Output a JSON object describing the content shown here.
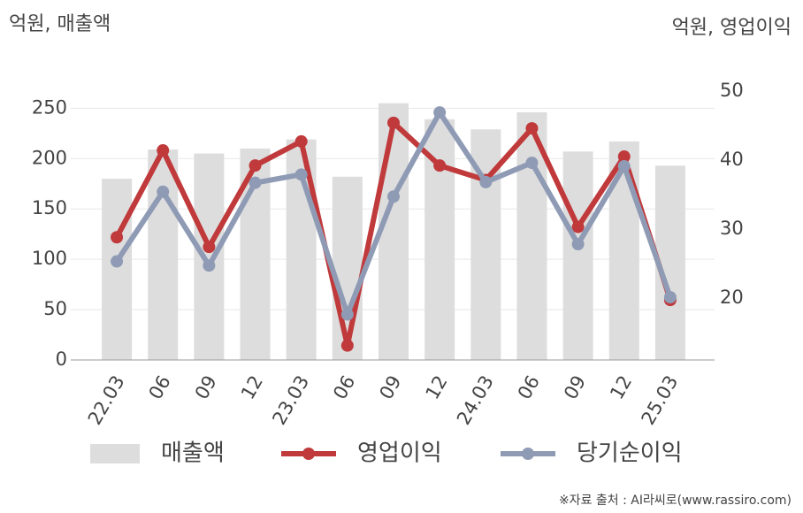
{
  "chart_data": {
    "type": "combo",
    "y_label": "억원, 매출액",
    "y2_label": "억원, 영업이익",
    "source": "※자료 출처 : AI라씨로(www.rassiro.com)",
    "categories": [
      "22.03",
      "06",
      "09",
      "12",
      "23.03",
      "06",
      "09",
      "12",
      "24.03",
      "06",
      "09",
      "12",
      "25.03"
    ],
    "series": [
      {
        "name": "매출액",
        "type": "bar",
        "color": "#dddddd",
        "values": [
          180,
          209,
          205,
          210,
          219,
          182,
          255,
          239,
          229,
          246,
          207,
          217,
          193
        ]
      },
      {
        "name": "영업이익",
        "type": "line",
        "axis": "y2",
        "color": "#c0393b",
        "values": [
          28.8,
          41.4,
          27.4,
          39.2,
          42.7,
          13.1,
          45.4,
          39.2,
          37.1,
          44.6,
          30.3,
          40.5,
          19.7
        ]
      },
      {
        "name": "당기순이익",
        "type": "line",
        "axis": "y2",
        "color": "#8f9bb5",
        "values": [
          25.3,
          35.4,
          24.7,
          36.7,
          37.9,
          17.6,
          34.7,
          46.9,
          36.8,
          39.6,
          27.8,
          39.1,
          20.1
        ]
      }
    ],
    "ylim": [
      0,
      267
    ],
    "yticks": [
      0,
      50,
      100,
      150,
      200,
      250
    ],
    "y2lim": [
      11,
      50
    ],
    "y2ticks": [
      20,
      30,
      40,
      50
    ],
    "grid": true
  }
}
